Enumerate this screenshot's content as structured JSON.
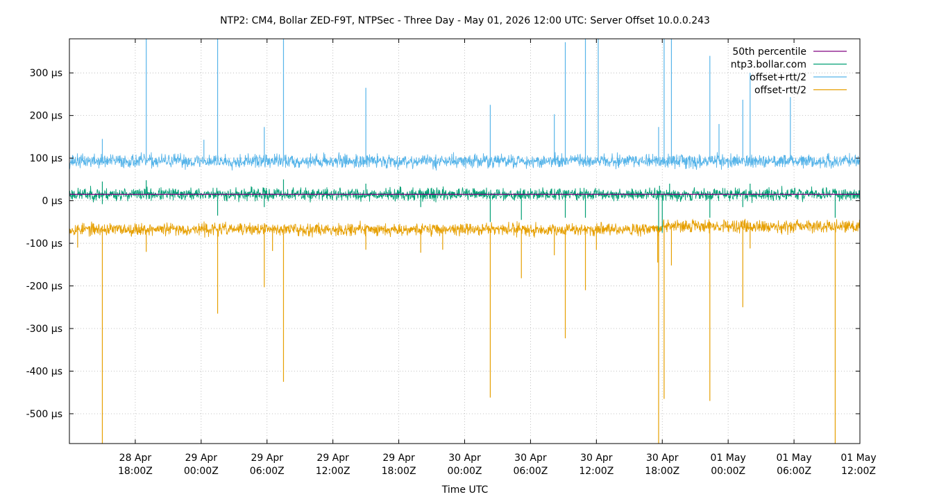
{
  "chart_data": {
    "type": "line",
    "title": "NTP2: CM4, Bollar ZED-F9T, NTPSec - Three Day - May 01, 2026 12:00 UTC: Server Offset 10.0.0.243",
    "xlabel": "Time UTC",
    "ylabel": "",
    "y_unit": "µs",
    "x_range": [
      "2026-04-28T12:00Z",
      "2026-05-01T12:00Z"
    ],
    "ylim": [
      -570,
      380
    ],
    "grid": true,
    "legend_position": "top-right",
    "y_ticks": [
      {
        "value": 300,
        "label": "300 µs"
      },
      {
        "value": 200,
        "label": "200 µs"
      },
      {
        "value": 100,
        "label": "100 µs"
      },
      {
        "value": 0,
        "label": "0 µs"
      },
      {
        "value": -100,
        "label": "-100 µs"
      },
      {
        "value": -200,
        "label": "-200 µs"
      },
      {
        "value": -300,
        "label": "-300 µs"
      },
      {
        "value": -400,
        "label": "-400 µs"
      },
      {
        "value": -500,
        "label": "-500 µs"
      }
    ],
    "x_ticks": [
      {
        "time": "2026-04-28T18:00Z",
        "line1": "28 Apr",
        "line2": "18:00Z"
      },
      {
        "time": "2026-04-29T00:00Z",
        "line1": "29 Apr",
        "line2": "00:00Z"
      },
      {
        "time": "2026-04-29T06:00Z",
        "line1": "29 Apr",
        "line2": "06:00Z"
      },
      {
        "time": "2026-04-29T12:00Z",
        "line1": "29 Apr",
        "line2": "12:00Z"
      },
      {
        "time": "2026-04-29T18:00Z",
        "line1": "29 Apr",
        "line2": "18:00Z"
      },
      {
        "time": "2026-04-30T00:00Z",
        "line1": "30 Apr",
        "line2": "00:00Z"
      },
      {
        "time": "2026-04-30T06:00Z",
        "line1": "30 Apr",
        "line2": "06:00Z"
      },
      {
        "time": "2026-04-30T12:00Z",
        "line1": "30 Apr",
        "line2": "12:00Z"
      },
      {
        "time": "2026-04-30T18:00Z",
        "line1": "30 Apr",
        "line2": "18:00Z"
      },
      {
        "time": "2026-05-01T00:00Z",
        "line1": "01 May",
        "line2": "00:00Z"
      },
      {
        "time": "2026-05-01T06:00Z",
        "line1": "01 May",
        "line2": "06:00Z"
      },
      {
        "time": "2026-05-01T12:00Z",
        "line1": "01 May",
        "line2": "12:00Z"
      }
    ],
    "series": [
      {
        "name": "50th percentile",
        "color": "#800080",
        "baseline": 15,
        "noise": 0,
        "spikes": []
      },
      {
        "name": "ntp3.bollar.com",
        "color": "#009e73",
        "baseline": 15,
        "noise": 9,
        "spikes": [
          {
            "time": "2026-04-28T15:00Z",
            "value": 45
          },
          {
            "time": "2026-04-28T15:00Z",
            "value": -8
          },
          {
            "time": "2026-04-28T19:00Z",
            "value": 48
          },
          {
            "time": "2026-04-29T01:30Z",
            "value": -35
          },
          {
            "time": "2026-04-29T05:45Z",
            "value": -15
          },
          {
            "time": "2026-04-29T07:30Z",
            "value": 50
          },
          {
            "time": "2026-04-29T15:00Z",
            "value": 40
          },
          {
            "time": "2026-04-29T20:00Z",
            "value": -15
          },
          {
            "time": "2026-04-30T02:20Z",
            "value": -50
          },
          {
            "time": "2026-04-30T05:10Z",
            "value": -45
          },
          {
            "time": "2026-04-30T09:10Z",
            "value": -40
          },
          {
            "time": "2026-04-30T11:00Z",
            "value": -40
          },
          {
            "time": "2026-04-30T17:40Z",
            "value": -70
          },
          {
            "time": "2026-04-30T17:45Z",
            "value": 35
          },
          {
            "time": "2026-04-30T18:00Z",
            "value": -75
          },
          {
            "time": "2026-04-30T18:40Z",
            "value": 40
          },
          {
            "time": "2026-04-30T22:20Z",
            "value": -40
          },
          {
            "time": "2026-05-01T01:20Z",
            "value": -15
          },
          {
            "time": "2026-05-01T02:00Z",
            "value": 40
          },
          {
            "time": "2026-05-01T09:45Z",
            "value": -40
          }
        ]
      },
      {
        "name": "offset+rtt/2",
        "color": "#56b4e9",
        "baseline": 93,
        "noise": 10,
        "spikes": [
          {
            "time": "2026-04-28T15:00Z",
            "value": 145
          },
          {
            "time": "2026-04-28T19:00Z",
            "value": 380
          },
          {
            "time": "2026-04-29T00:15Z",
            "value": 143
          },
          {
            "time": "2026-04-29T01:30Z",
            "value": 380
          },
          {
            "time": "2026-04-29T05:45Z",
            "value": 173
          },
          {
            "time": "2026-04-29T07:30Z",
            "value": 380
          },
          {
            "time": "2026-04-29T15:00Z",
            "value": 265
          },
          {
            "time": "2026-04-30T02:20Z",
            "value": 225
          },
          {
            "time": "2026-04-30T08:10Z",
            "value": 203
          },
          {
            "time": "2026-04-30T09:10Z",
            "value": 372
          },
          {
            "time": "2026-04-30T11:00Z",
            "value": 380
          },
          {
            "time": "2026-04-30T12:10Z",
            "value": 380
          },
          {
            "time": "2026-04-30T17:40Z",
            "value": 173
          },
          {
            "time": "2026-04-30T18:10Z",
            "value": 380
          },
          {
            "time": "2026-04-30T18:50Z",
            "value": 380
          },
          {
            "time": "2026-04-30T22:20Z",
            "value": 340
          },
          {
            "time": "2026-04-30T23:10Z",
            "value": 180
          },
          {
            "time": "2026-05-01T01:20Z",
            "value": 237
          },
          {
            "time": "2026-05-01T02:00Z",
            "value": 300
          },
          {
            "time": "2026-05-01T05:40Z",
            "value": 243
          }
        ]
      },
      {
        "name": "offset-rtt/2",
        "color": "#e69f00",
        "baseline": -67,
        "noise": 9,
        "baseline_after": {
          "time": "2026-04-30T18:00Z",
          "value": -60
        },
        "spikes": [
          {
            "time": "2026-04-28T12:45Z",
            "value": -110
          },
          {
            "time": "2026-04-28T15:00Z",
            "value": -570
          },
          {
            "time": "2026-04-28T19:00Z",
            "value": -120
          },
          {
            "time": "2026-04-29T01:30Z",
            "value": -265
          },
          {
            "time": "2026-04-29T05:45Z",
            "value": -203
          },
          {
            "time": "2026-04-29T06:30Z",
            "value": -118
          },
          {
            "time": "2026-04-29T07:30Z",
            "value": -425
          },
          {
            "time": "2026-04-29T15:00Z",
            "value": -115
          },
          {
            "time": "2026-04-29T20:00Z",
            "value": -122
          },
          {
            "time": "2026-04-29T22:00Z",
            "value": -115
          },
          {
            "time": "2026-04-30T02:20Z",
            "value": -462
          },
          {
            "time": "2026-04-30T05:10Z",
            "value": -182
          },
          {
            "time": "2026-04-30T08:10Z",
            "value": -128
          },
          {
            "time": "2026-04-30T09:10Z",
            "value": -323
          },
          {
            "time": "2026-04-30T11:00Z",
            "value": -210
          },
          {
            "time": "2026-04-30T12:00Z",
            "value": -115
          },
          {
            "time": "2026-04-30T17:35Z",
            "value": -145
          },
          {
            "time": "2026-04-30T17:40Z",
            "value": -570
          },
          {
            "time": "2026-04-30T18:10Z",
            "value": -465
          },
          {
            "time": "2026-04-30T18:50Z",
            "value": -152
          },
          {
            "time": "2026-04-30T22:20Z",
            "value": -470
          },
          {
            "time": "2026-05-01T01:20Z",
            "value": -250
          },
          {
            "time": "2026-05-01T02:00Z",
            "value": -112
          },
          {
            "time": "2026-05-01T09:45Z",
            "value": -570
          }
        ]
      }
    ]
  }
}
